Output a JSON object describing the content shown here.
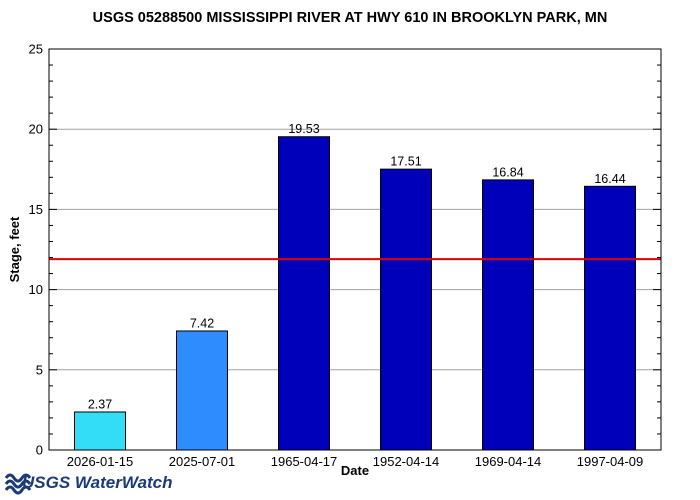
{
  "chart_data": {
    "type": "bar",
    "title": "USGS 05288500 MISSISSIPPI RIVER AT HWY 610 IN BROOKLYN PARK, MN",
    "xlabel": "Date",
    "ylabel": "Stage, feet",
    "ylim": [
      0,
      25
    ],
    "yticks": [
      0,
      5,
      10,
      15,
      20,
      25
    ],
    "grid": true,
    "categories": [
      "2026-01-15",
      "2025-07-01",
      "1965-04-17",
      "1952-04-14",
      "1969-04-14",
      "1997-04-09"
    ],
    "values": [
      2.37,
      7.42,
      19.53,
      17.51,
      16.84,
      16.44
    ],
    "value_labels": [
      "2.37",
      "7.42",
      "19.53",
      "17.51",
      "16.84",
      "16.44"
    ],
    "bar_colors": [
      "#33ddf7",
      "#2f8cff",
      "#0000bb",
      "#0000bb",
      "#0000bb",
      "#0000bb"
    ],
    "reference_line": {
      "value": 11.9,
      "color": "#dd0000"
    }
  },
  "logo": {
    "text": "USGS WaterWatch",
    "color": "#1a3a7a"
  }
}
